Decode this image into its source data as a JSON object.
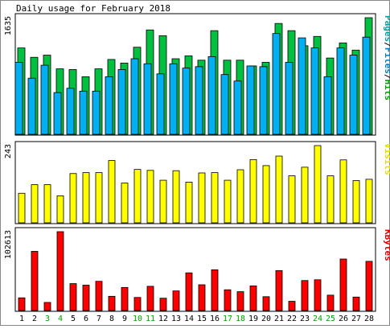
{
  "chart_data": {
    "type": "bar",
    "title": "Daily usage for February 2018",
    "categories": [
      "1",
      "2",
      "3",
      "4",
      "5",
      "6",
      "7",
      "8",
      "9",
      "10",
      "11",
      "12",
      "13",
      "14",
      "15",
      "16",
      "17",
      "18",
      "19",
      "20",
      "21",
      "22",
      "23",
      "24",
      "25",
      "26",
      "27",
      "28"
    ],
    "weekend_days": [
      "3",
      "4",
      "10",
      "11",
      "17",
      "18",
      "24",
      "25"
    ],
    "panels": [
      {
        "id": "hits",
        "ymax_label": "1635",
        "ylabel_parts": [
          "Pages",
          "/",
          "Files",
          "/",
          "Hits"
        ],
        "ylabel_colors": [
          "#00A0A0",
          "#000000",
          "#0080C0",
          "#000000",
          "#00A000"
        ],
        "series": [
          {
            "name": "Hits",
            "color": "#00C040",
            "values": [
              1200,
              1070,
              1100,
              910,
              900,
              800,
              910,
              1040,
              990,
              1210,
              1450,
              1370,
              1050,
              1090,
              1030,
              1440,
              1030,
              1030,
              950,
              1000,
              1540,
              1440,
              1230,
              1360,
              1060,
              1270,
              1170,
              1620
            ]
          },
          {
            "name": "Files",
            "color": "#00B0F0",
            "values": [
              1000,
              780,
              960,
              580,
              640,
              600,
              600,
              800,
              900,
              1050,
              980,
              840,
              980,
              920,
              940,
              1080,
              830,
              740,
              950,
              940,
              1400,
              1000,
              1340,
              1200,
              800,
              1200,
              1100,
              1350
            ]
          },
          {
            "name": "Pages",
            "color": "#00A0A0",
            "values": [
              0,
              0,
              0,
              0,
              0,
              0,
              0,
              0,
              0,
              0,
              0,
              0,
              0,
              0,
              0,
              0,
              0,
              0,
              0,
              0,
              0,
              0,
              0,
              0,
              0,
              0,
              0,
              0
            ]
          }
        ]
      },
      {
        "id": "visits",
        "ymax_label": "243",
        "ylabel_parts": [
          "Visits"
        ],
        "ylabel_colors": [
          "#E0E000"
        ],
        "series": [
          {
            "name": "Visits",
            "color": "#FFFF00",
            "values": [
              93,
              120,
              120,
              85,
              155,
              158,
              158,
              196,
              125,
              168,
              165,
              134,
              164,
              128,
              157,
              158,
              134,
              167,
              199,
              180,
              210,
              148,
              175,
              243,
              148,
              198,
              133,
              137
            ]
          }
        ]
      },
      {
        "id": "kbytes",
        "ymax_label": "102613",
        "ylabel_parts": [
          "KBytes"
        ],
        "ylabel_colors": [
          "#E00000"
        ],
        "series": [
          {
            "name": "KBytes",
            "color": "#FF0000",
            "values": [
              16500,
              77000,
              10500,
              102600,
              35000,
              33000,
              38000,
              18500,
              30000,
              17000,
              31500,
              16000,
              25500,
              49000,
              33500,
              53000,
              27000,
              24500,
              32000,
              18000,
              52000,
              12000,
              39000,
              40000,
              20000,
              67000,
              17500,
              64000
            ]
          }
        ]
      }
    ]
  }
}
